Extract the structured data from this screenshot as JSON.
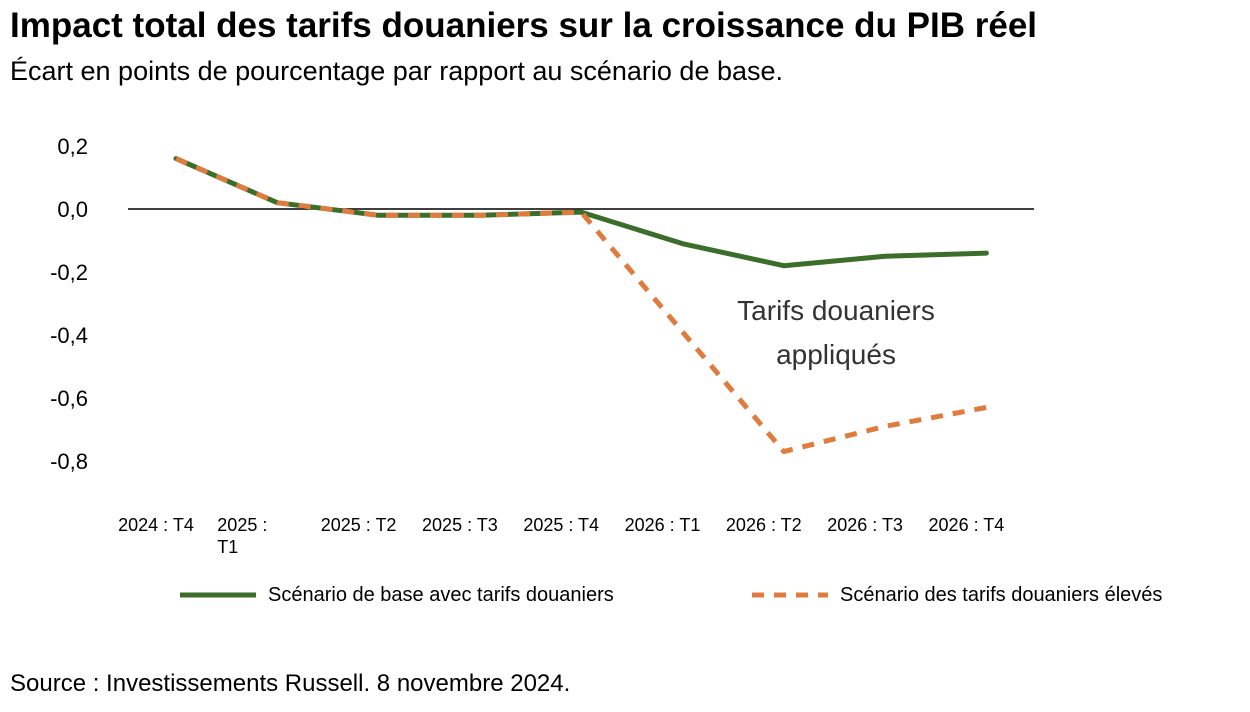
{
  "title": "Impact total des tarifs douaniers sur la croissance du PIB réel",
  "subtitle": "Écart en points de pourcentage par rapport au scénario de base.",
  "source": "Source : Investissements Russell. 8 novembre 2024.",
  "chart_data": {
    "type": "line",
    "title": "Impact total des tarifs douaniers sur la croissance du PIB réel",
    "subtitle": "Écart en points de pourcentage par rapport au scénario de base.",
    "categories": [
      "2024 : T4",
      "2025 : T1",
      "2025 : T2",
      "2025 : T3",
      "2025 : T4",
      "2026 : T1",
      "2026 : T2",
      "2026 : T3",
      "2026 : T4"
    ],
    "y_ticks": [
      "0,2",
      "0,0",
      "-0,2",
      "-0,4",
      "-0,6",
      "-0,8"
    ],
    "y_tick_values": [
      0.2,
      0,
      -0.2,
      -0.4,
      -0.6,
      -0.8
    ],
    "ylim": [
      -0.8,
      0.2
    ],
    "grid": false,
    "legend_position": "bottom",
    "annotation": [
      "Tarifs douaniers",
      "appliqués"
    ],
    "series": [
      {
        "name": "Scénario de base avec tarifs douaniers",
        "color": "#3a6e2a",
        "style": "solid",
        "values": [
          0.16,
          0.02,
          -0.02,
          -0.02,
          -0.01,
          -0.11,
          -0.18,
          -0.15,
          -0.14
        ]
      },
      {
        "name": "Scénario des tarifs douaniers élevés",
        "color": "#e07b3e",
        "style": "dashed",
        "values": [
          0.16,
          0.02,
          -0.02,
          -0.02,
          -0.01,
          -0.39,
          -0.77,
          -0.69,
          -0.63
        ]
      }
    ]
  }
}
